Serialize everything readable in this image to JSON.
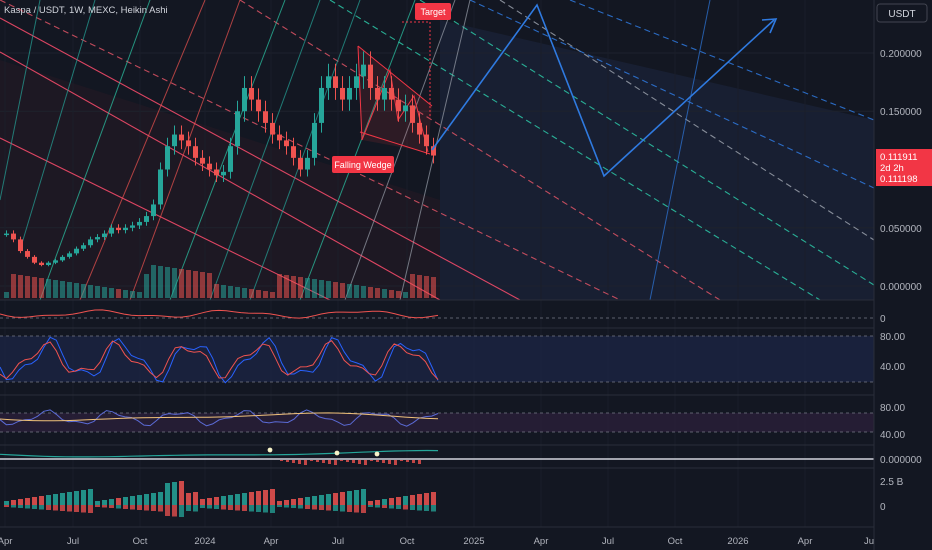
{
  "header": {
    "title": "Kaspa / USDT, 1W, MEXC, Heikin Ashi"
  },
  "price_axis": {
    "currency_button": "USDT",
    "ticks": [
      "0.200000",
      "0.150000",
      "0.050000",
      "0.000000"
    ],
    "last_price": "0.111911",
    "countdown": "2d 2h",
    "secondary_price": "0.111198"
  },
  "annotations": {
    "target": "Target",
    "pattern": "Falling Wedge"
  },
  "panes": {
    "pane1_ticks": [
      "0"
    ],
    "rsi_ticks": [
      "80.00",
      "40.00"
    ],
    "stoch_ticks": [
      "80.00",
      "40.00"
    ],
    "macd_ticks": [
      "0.000000"
    ],
    "volume_ticks": [
      "2.5 B",
      "0"
    ]
  },
  "time_axis": {
    "labels": [
      "Apr",
      "Jul",
      "Oct",
      "2024",
      "Apr",
      "Jul",
      "Oct",
      "2025",
      "Apr",
      "Jul",
      "Oct",
      "2026",
      "Apr",
      "Ju"
    ]
  },
  "colors": {
    "background": "#131722",
    "up": "#26a69a",
    "down": "#ef5350",
    "projection": "#2962ff",
    "axis_text": "#b2b5be",
    "last_price_bg": "#f23645"
  },
  "chart_data": {
    "type": "candlestick",
    "title": "Kaspa / USDT, 1W, MEXC, Heikin Ashi",
    "x_labels": [
      "Apr",
      "Jul",
      "Oct",
      "2024",
      "Apr",
      "Jul",
      "Oct",
      "2025",
      "Apr",
      "Jul",
      "Oct",
      "2026",
      "Apr",
      "Ju"
    ],
    "y_ticks": [
      0.0,
      0.05,
      0.15,
      0.2
    ],
    "ylim": [
      0.0,
      0.22
    ],
    "last_price": 0.111911,
    "series": [
      {
        "name": "close (approx.)",
        "values": [
          0.045,
          0.04,
          0.03,
          0.025,
          0.02,
          0.018,
          0.02,
          0.022,
          0.025,
          0.028,
          0.032,
          0.035,
          0.04,
          0.042,
          0.045,
          0.05,
          0.048,
          0.05,
          0.052,
          0.055,
          0.06,
          0.07,
          0.1,
          0.12,
          0.13,
          0.125,
          0.12,
          0.11,
          0.105,
          0.1,
          0.095,
          0.098,
          0.12,
          0.15,
          0.17,
          0.16,
          0.15,
          0.14,
          0.13,
          0.125,
          0.12,
          0.11,
          0.1,
          0.11,
          0.14,
          0.17,
          0.18,
          0.17,
          0.16,
          0.17,
          0.18,
          0.19,
          0.17,
          0.16,
          0.17,
          0.16,
          0.15,
          0.155,
          0.14,
          0.13,
          0.12,
          0.112
        ]
      }
    ],
    "projection": {
      "target_label": "Target",
      "points_usd": [
        0.112,
        0.225,
        0.085,
        0.205
      ]
    },
    "annotations": [
      "Target",
      "Falling Wedge"
    ]
  }
}
